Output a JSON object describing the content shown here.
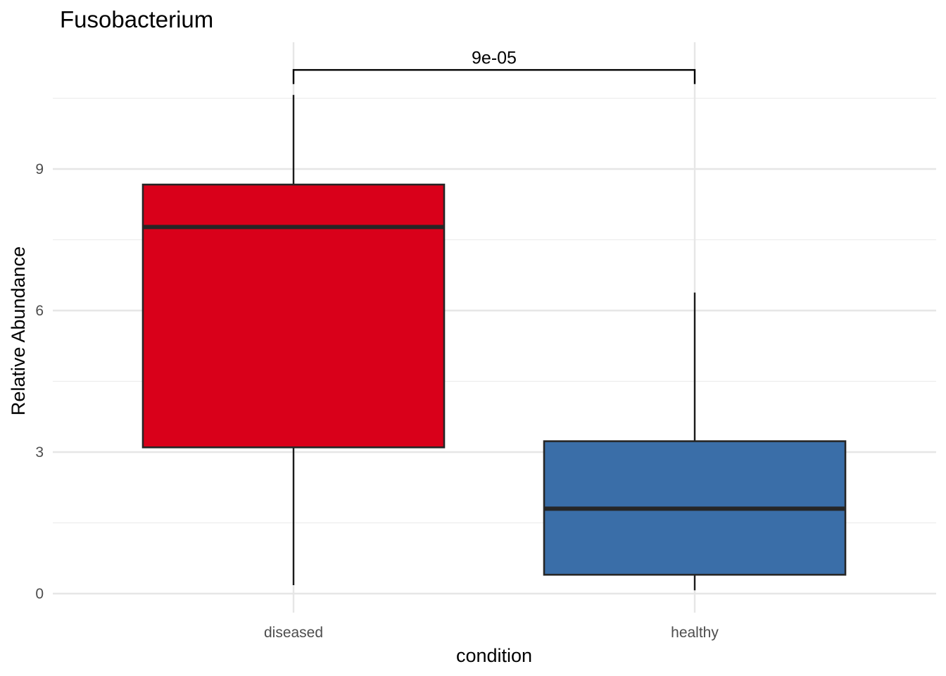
{
  "chart_data": {
    "type": "box",
    "title": "Fusobacterium",
    "xlabel": "condition",
    "ylabel": "Relative Abundance",
    "categories": [
      "diseased",
      "healthy"
    ],
    "ylim": [
      -0.4,
      11.6
    ],
    "y_ticks": [
      0,
      3,
      6,
      9
    ],
    "y_tick_labels": [
      "0",
      "3",
      "6",
      "9"
    ],
    "grid": true,
    "legend": "none",
    "boxes": [
      {
        "category": "diseased",
        "min": 0.18,
        "q1": 3.1,
        "median": 7.77,
        "q3": 8.67,
        "max": 10.57,
        "color": "#D9001A"
      },
      {
        "category": "healthy",
        "min": 0.07,
        "q1": 0.4,
        "median": 1.8,
        "q3": 3.23,
        "max": 6.38,
        "color": "#3A6EA8"
      }
    ],
    "annotations": [
      {
        "type": "significance-bracket",
        "from": "diseased",
        "to": "healthy",
        "y": 11.1,
        "tip_y": 10.8,
        "label": "9e-05"
      }
    ]
  }
}
